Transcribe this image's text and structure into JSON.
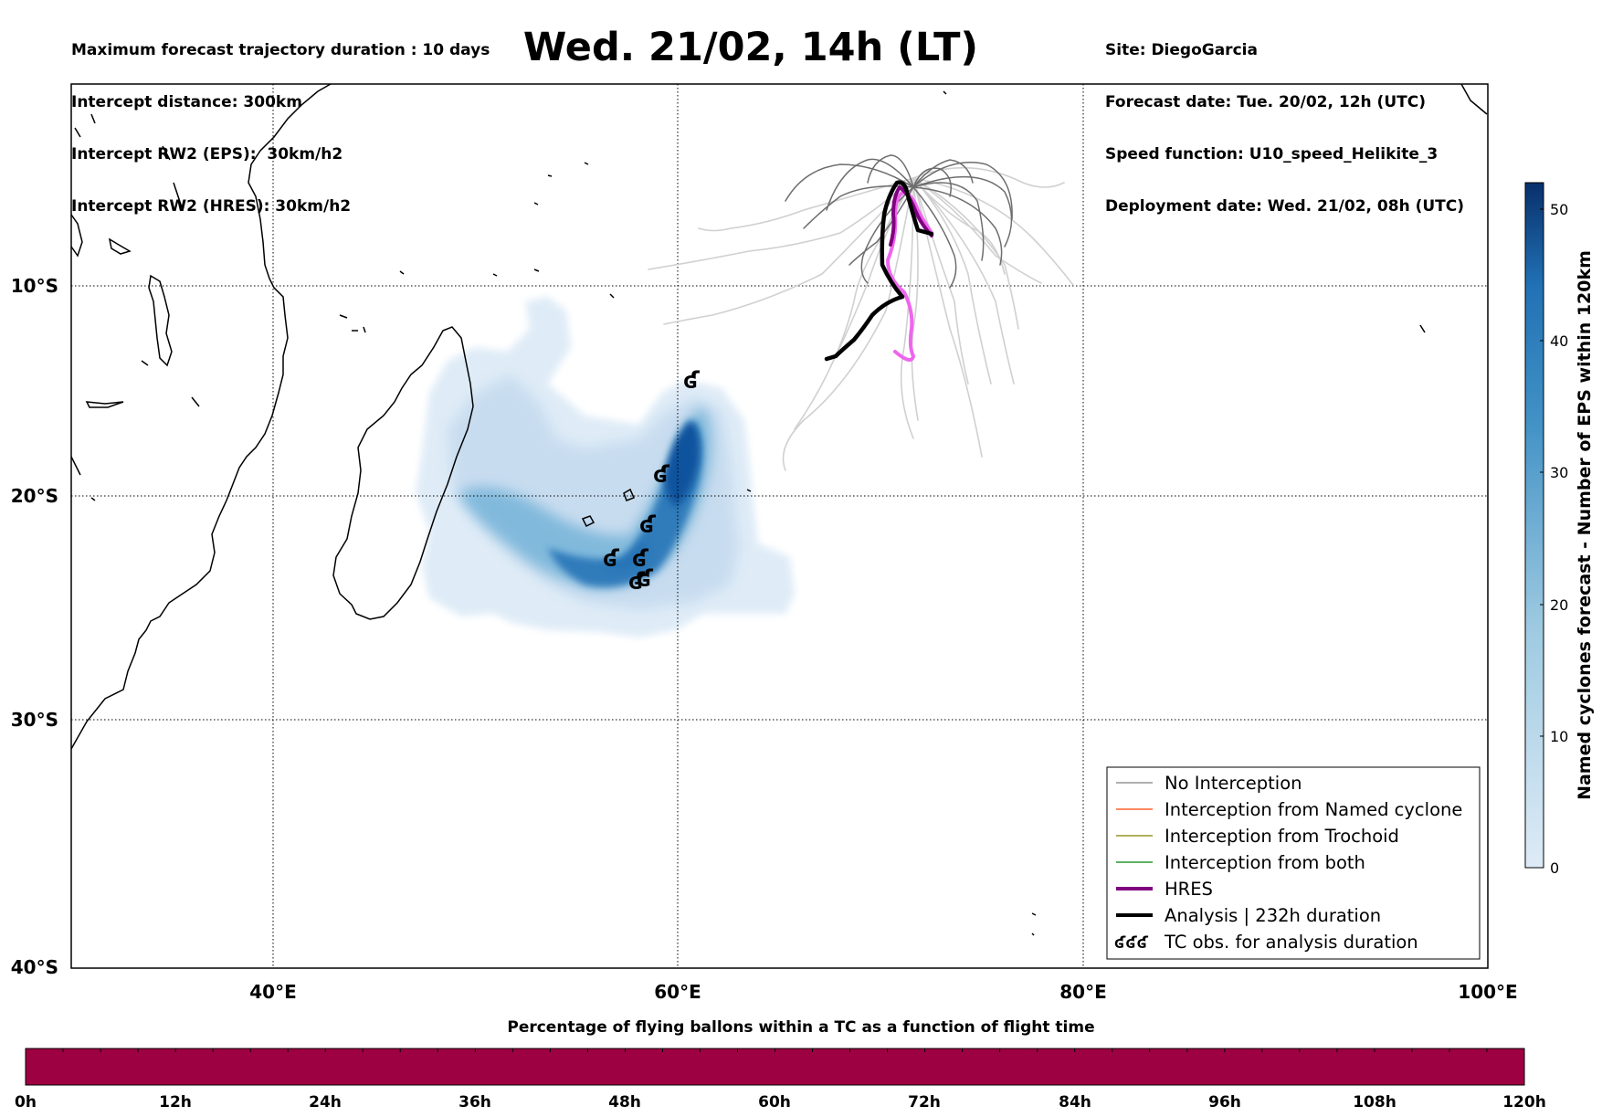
{
  "header_left": [
    "Maximum forecast trajectory duration : 10 days",
    "Intercept distance: 300km",
    "Intercept RW2 (EPS):  30km/h2",
    "Intercept RW2 (HRES): 30km/h2"
  ],
  "header_right": [
    "Site: DiegoGarcia",
    "Forecast date: Tue. 20/02, 12h (UTC)",
    "Speed function: U10_speed_Helikite_3",
    "Deployment date: Wed. 21/02, 08h (UTC)"
  ],
  "title": "Wed. 21/02, 14h (LT)",
  "map": {
    "lon_range": [
      30,
      100
    ],
    "lat_range": [
      -40,
      0
    ],
    "lon_ticks": [
      "40°E",
      "60°E",
      "80°E",
      "100°E"
    ],
    "lat_ticks": [
      "10°S",
      "20°S",
      "30°S",
      "40°S"
    ],
    "density_color": "#08306b"
  },
  "colorbar": {
    "title": "Named cyclones forecast - Number of EPS within 120km",
    "ticks": [
      "0",
      "10",
      "20",
      "30",
      "40",
      "50"
    ],
    "range": [
      0,
      52
    ]
  },
  "legend": {
    "items": [
      {
        "label": "No Interception",
        "color": "#808080",
        "style": "thin"
      },
      {
        "label": "Interception from Named cyclone",
        "color": "#ff4500",
        "style": "thin"
      },
      {
        "label": "Interception from Trochoid",
        "color": "#808000",
        "style": "thin"
      },
      {
        "label": "Interception from both",
        "color": "#008000",
        "style": "thin"
      },
      {
        "label": "HRES",
        "color": "#800080",
        "style": "thick"
      },
      {
        "label": "Analysis | 232h duration",
        "color": "#000000",
        "style": "thick"
      },
      {
        "label": "TC obs. for analysis duration",
        "color": "#000000",
        "style": "symbol"
      }
    ]
  },
  "tc_symbol": "ʛʛʛ",
  "bottom_bar": {
    "title": "Percentage of flying ballons within a TC as a function of flight time",
    "ticks": [
      "0h",
      "12h",
      "24h",
      "36h",
      "48h",
      "60h",
      "72h",
      "84h",
      "96h",
      "108h",
      "120h"
    ],
    "color": "#9e0142"
  }
}
